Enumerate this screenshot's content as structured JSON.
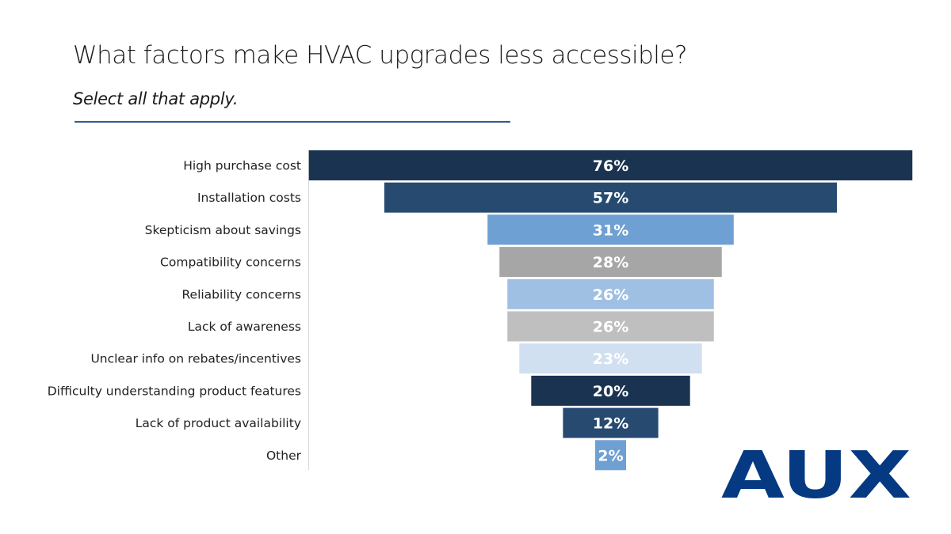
{
  "chart_data": {
    "type": "bar",
    "subtype": "funnel",
    "title": "What factors make HVAC upgrades less accessible?",
    "subtitle": "Select all that apply.",
    "categories": [
      "High purchase cost",
      "Installation costs",
      "Skepticism about savings",
      "Compatibility concerns",
      "Reliability concerns",
      "Lack of awareness",
      "Unclear info on rebates/incentives",
      "Difficulty understanding product features",
      "Lack of product availability",
      "Other"
    ],
    "values": [
      76,
      57,
      31,
      28,
      26,
      26,
      23,
      20,
      12,
      2
    ],
    "data_labels": [
      "76%",
      "57%",
      "31%",
      "28%",
      "26%",
      "26%",
      "23%",
      "20%",
      "12%",
      "2%"
    ],
    "unit": "%",
    "colors": [
      "#1a3350",
      "#264a70",
      "#6fa0d3",
      "#a6a6a6",
      "#9fc0e3",
      "#bfbfbf",
      "#d1e0f1",
      "#1a3350",
      "#264a70",
      "#6fa0d3"
    ],
    "grid": false,
    "legend": "none"
  },
  "logo": {
    "text": "AUX",
    "color": "#053a82"
  }
}
